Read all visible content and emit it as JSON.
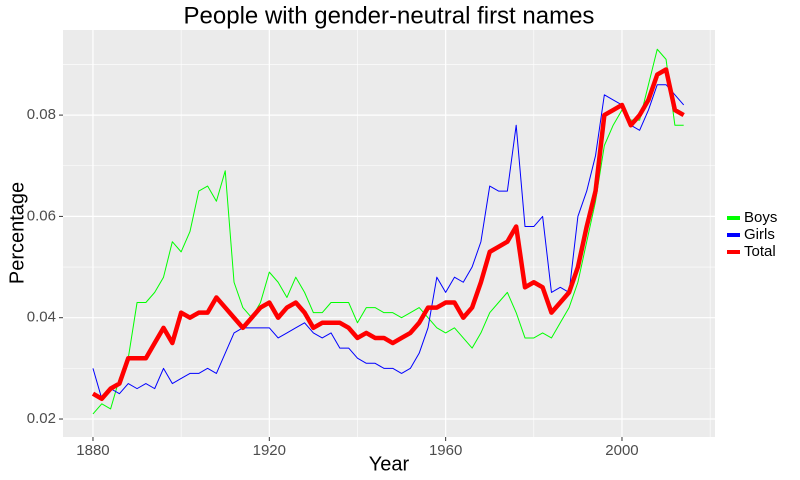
{
  "chart_data": {
    "type": "line",
    "title": "People with gender-neutral first names",
    "x_label": "Year",
    "y_label": "Percentage",
    "x": [
      1880,
      1882,
      1884,
      1886,
      1888,
      1890,
      1892,
      1894,
      1896,
      1898,
      1900,
      1902,
      1904,
      1906,
      1908,
      1910,
      1912,
      1914,
      1916,
      1918,
      1920,
      1922,
      1924,
      1926,
      1928,
      1930,
      1932,
      1934,
      1936,
      1938,
      1940,
      1942,
      1944,
      1946,
      1948,
      1950,
      1952,
      1954,
      1956,
      1958,
      1960,
      1962,
      1964,
      1966,
      1968,
      1970,
      1972,
      1974,
      1976,
      1978,
      1980,
      1982,
      1984,
      1986,
      1988,
      1990,
      1992,
      1994,
      1996,
      1998,
      2000,
      2002,
      2004,
      2006,
      2008,
      2010,
      2012,
      2014
    ],
    "series": [
      {
        "name": "Boys",
        "color": "#00ff00",
        "line_width": 1,
        "values": [
          0.021,
          0.023,
          0.022,
          0.028,
          0.032,
          0.043,
          0.043,
          0.045,
          0.048,
          0.055,
          0.053,
          0.057,
          0.065,
          0.066,
          0.063,
          0.069,
          0.047,
          0.042,
          0.04,
          0.043,
          0.049,
          0.047,
          0.044,
          0.048,
          0.045,
          0.041,
          0.041,
          0.043,
          0.043,
          0.043,
          0.039,
          0.042,
          0.042,
          0.041,
          0.041,
          0.04,
          0.041,
          0.042,
          0.04,
          0.038,
          0.037,
          0.038,
          0.036,
          0.034,
          0.037,
          0.041,
          0.043,
          0.045,
          0.041,
          0.036,
          0.036,
          0.037,
          0.036,
          0.039,
          0.042,
          0.047,
          0.055,
          0.063,
          0.074,
          0.078,
          0.081,
          0.079,
          0.079,
          0.086,
          0.093,
          0.091,
          0.078,
          0.078
        ]
      },
      {
        "name": "Girls",
        "color": "#0000ff",
        "line_width": 1,
        "values": [
          0.03,
          0.024,
          0.026,
          0.025,
          0.027,
          0.026,
          0.027,
          0.026,
          0.03,
          0.027,
          0.028,
          0.029,
          0.029,
          0.03,
          0.029,
          0.033,
          0.037,
          0.038,
          0.038,
          0.038,
          0.038,
          0.036,
          0.037,
          0.038,
          0.039,
          0.037,
          0.036,
          0.037,
          0.034,
          0.034,
          0.032,
          0.031,
          0.031,
          0.03,
          0.03,
          0.029,
          0.03,
          0.033,
          0.038,
          0.048,
          0.045,
          0.048,
          0.047,
          0.05,
          0.055,
          0.066,
          0.065,
          0.065,
          0.078,
          0.058,
          0.058,
          0.06,
          0.045,
          0.046,
          0.045,
          0.06,
          0.065,
          0.072,
          0.084,
          0.083,
          0.082,
          0.078,
          0.077,
          0.081,
          0.086,
          0.086,
          0.084,
          0.082
        ]
      },
      {
        "name": "Total",
        "color": "#ff0000",
        "line_width": 4.5,
        "values": [
          0.025,
          0.024,
          0.026,
          0.027,
          0.032,
          0.032,
          0.032,
          0.035,
          0.038,
          0.035,
          0.041,
          0.04,
          0.041,
          0.041,
          0.044,
          0.042,
          0.04,
          0.038,
          0.04,
          0.042,
          0.043,
          0.04,
          0.042,
          0.043,
          0.041,
          0.038,
          0.039,
          0.039,
          0.039,
          0.038,
          0.036,
          0.037,
          0.036,
          0.036,
          0.035,
          0.036,
          0.037,
          0.039,
          0.042,
          0.042,
          0.043,
          0.043,
          0.04,
          0.042,
          0.047,
          0.053,
          0.054,
          0.055,
          0.058,
          0.046,
          0.047,
          0.046,
          0.041,
          0.043,
          0.045,
          0.05,
          0.058,
          0.065,
          0.08,
          0.081,
          0.082,
          0.078,
          0.08,
          0.083,
          0.088,
          0.089,
          0.081,
          0.08
        ]
      }
    ],
    "xlim": [
      1873.2,
      2021.1
    ],
    "xticks": [
      1880,
      1920,
      1960,
      2000
    ],
    "ylim": [
      0.01645,
      0.0968
    ],
    "yticks": [
      0.02,
      0.04,
      0.06,
      0.08
    ],
    "grid": true,
    "legend": "right",
    "panel_color": "#ebebeb"
  }
}
